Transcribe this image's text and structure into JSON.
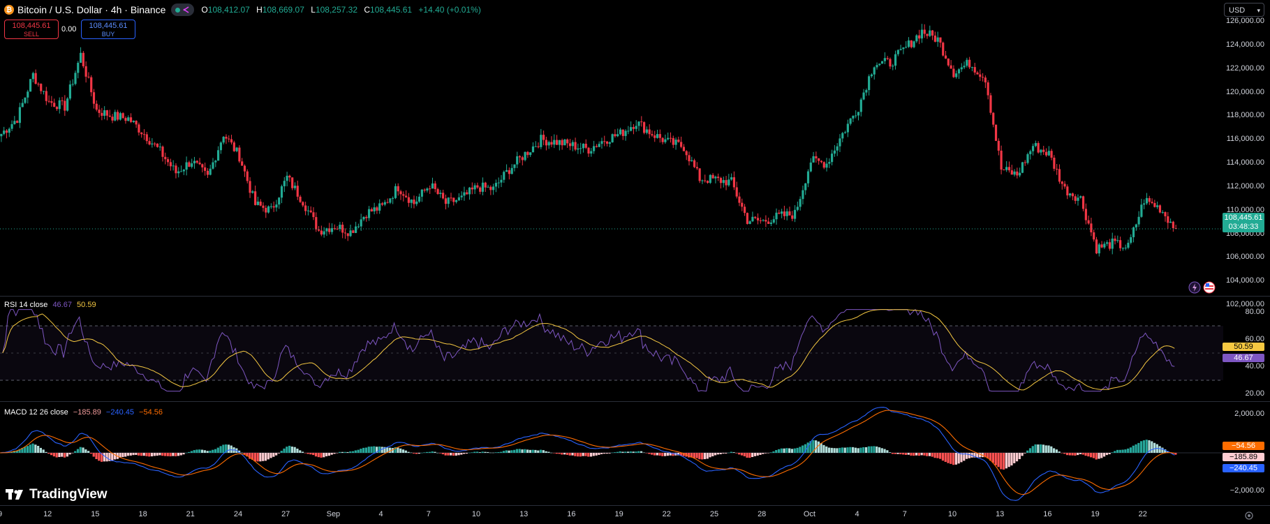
{
  "header": {
    "coin_symbol": "₿",
    "title": "Bitcoin / U.S. Dollar · 4h · Binance",
    "ohlc": [
      {
        "k": "O",
        "v": "108,412.07"
      },
      {
        "k": "H",
        "v": "108,669.07"
      },
      {
        "k": "L",
        "v": "108,257.32"
      },
      {
        "k": "C",
        "v": "108,445.61"
      }
    ],
    "change": "+14.40 (+0.01%)"
  },
  "trade": {
    "sell_price": "108,445.61",
    "sell_label": "SELL",
    "spread": "0.00",
    "buy_price": "108,445.61",
    "buy_label": "BUY"
  },
  "currency_selector": "USD",
  "price_axis": {
    "labels": [
      "126,000.00",
      "124,000.00",
      "122,000.00",
      "120,000.00",
      "118,000.00",
      "116,000.00",
      "114,000.00",
      "112,000.00",
      "110,000.00",
      "108,000.00",
      "106,000.00",
      "104,000.00",
      "102,000.00"
    ],
    "values": [
      126000,
      124000,
      122000,
      120000,
      118000,
      116000,
      114000,
      112000,
      110000,
      108000,
      106000,
      104000,
      102000
    ],
    "current_price": "108,445.61",
    "countdown": "03:48:33"
  },
  "rsi": {
    "legend_name": "RSI 14 close",
    "value": "46.67",
    "ma_value": "50.59",
    "axis_labels": [
      "80.00",
      "60.00",
      "40.00",
      "20.00"
    ],
    "axis_values": [
      80,
      60,
      40,
      20
    ]
  },
  "macd": {
    "legend_name": "MACD 12 26 close",
    "histogram": "−185.89",
    "macd": "−240.45",
    "signal": "−54.56",
    "axis_labels": [
      "2,000.00",
      "−2,000.00"
    ],
    "axis_values": [
      2000,
      -2000
    ]
  },
  "time_axis": [
    "9",
    "12",
    "15",
    "18",
    "21",
    "24",
    "27",
    "Sep",
    "4",
    "7",
    "10",
    "13",
    "16",
    "19",
    "22",
    "25",
    "28",
    "Oct",
    "4",
    "7",
    "10",
    "13",
    "16",
    "19",
    "22"
  ],
  "branding": "TradingView",
  "colors": {
    "up": "#22ab94",
    "down": "#f23645",
    "rsi": "#7e57c2",
    "rsi_ma": "#f5c842",
    "macd": "#2962ff",
    "signal": "#ff6d00"
  },
  "chart_data": {
    "type": "candlestick",
    "interval": "4h",
    "series": [
      {
        "name": "Bitcoin / U.S. Dollar",
        "close_path_keypoints": [
          {
            "x": "9",
            "y": 116500
          },
          {
            "x": "10",
            "y": 117800
          },
          {
            "x": "11",
            "y": 121500
          },
          {
            "x": "12",
            "y": 119200
          },
          {
            "x": "13",
            "y": 118800
          },
          {
            "x": "14",
            "y": 123200
          },
          {
            "x": "15",
            "y": 118500
          },
          {
            "x": "16",
            "y": 118000
          },
          {
            "x": "17",
            "y": 117800
          },
          {
            "x": "18",
            "y": 116500
          },
          {
            "x": "19",
            "y": 115000
          },
          {
            "x": "20",
            "y": 113200
          },
          {
            "x": "21",
            "y": 114200
          },
          {
            "x": "22",
            "y": 112800
          },
          {
            "x": "23",
            "y": 116500
          },
          {
            "x": "24",
            "y": 114600
          },
          {
            "x": "25",
            "y": 110500
          },
          {
            "x": "26",
            "y": 110000
          },
          {
            "x": "27",
            "y": 112800
          },
          {
            "x": "28",
            "y": 110800
          },
          {
            "x": "29",
            "y": 108300
          },
          {
            "x": "30",
            "y": 108700
          },
          {
            "x": "31",
            "y": 108200
          },
          {
            "x": "Sep",
            "y": 109800
          },
          {
            "x": "2",
            "y": 110300
          },
          {
            "x": "3",
            "y": 112000
          },
          {
            "x": "4",
            "y": 110600
          },
          {
            "x": "5",
            "y": 112200
          },
          {
            "x": "6",
            "y": 110600
          },
          {
            "x": "7",
            "y": 111000
          },
          {
            "x": "8",
            "y": 112000
          },
          {
            "x": "9",
            "y": 111800
          },
          {
            "x": "10",
            "y": 113500
          },
          {
            "x": "11",
            "y": 114800
          },
          {
            "x": "12",
            "y": 116000
          },
          {
            "x": "13",
            "y": 115800
          },
          {
            "x": "14",
            "y": 115500
          },
          {
            "x": "15",
            "y": 115200
          },
          {
            "x": "16",
            "y": 116000
          },
          {
            "x": "17",
            "y": 116500
          },
          {
            "x": "18",
            "y": 117500
          },
          {
            "x": "19",
            "y": 116500
          },
          {
            "x": "20",
            "y": 115800
          },
          {
            "x": "21",
            "y": 115400
          },
          {
            "x": "22",
            "y": 112700
          },
          {
            "x": "23",
            "y": 112600
          },
          {
            "x": "24",
            "y": 112400
          },
          {
            "x": "25",
            "y": 109200
          },
          {
            "x": "26",
            "y": 109100
          },
          {
            "x": "27",
            "y": 109500
          },
          {
            "x": "28",
            "y": 109700
          },
          {
            "x": "29",
            "y": 114200
          },
          {
            "x": "30",
            "y": 114000
          },
          {
            "x": "Oct",
            "y": 116500
          },
          {
            "x": "2",
            "y": 118800
          },
          {
            "x": "3",
            "y": 122500
          },
          {
            "x": "4",
            "y": 122500
          },
          {
            "x": "5",
            "y": 123800
          },
          {
            "x": "6",
            "y": 125200
          },
          {
            "x": "7",
            "y": 124500
          },
          {
            "x": "8",
            "y": 121700
          },
          {
            "x": "9",
            "y": 122500
          },
          {
            "x": "10",
            "y": 121200
          },
          {
            "x": "11",
            "y": 113500
          },
          {
            "x": "12",
            "y": 113000
          },
          {
            "x": "13",
            "y": 115500
          },
          {
            "x": "14",
            "y": 114800
          },
          {
            "x": "15",
            "y": 111800
          },
          {
            "x": "16",
            "y": 111000
          },
          {
            "x": "17",
            "y": 106800
          },
          {
            "x": "18",
            "y": 107200
          },
          {
            "x": "19",
            "y": 106900
          },
          {
            "x": "20",
            "y": 110900
          },
          {
            "x": "21",
            "y": 110200
          },
          {
            "x": "22",
            "y": 108446
          }
        ]
      }
    ],
    "ylim": [
      102000,
      126000
    ],
    "indicators": [
      "RSI 14 close",
      "MACD 12 26 close"
    ]
  }
}
